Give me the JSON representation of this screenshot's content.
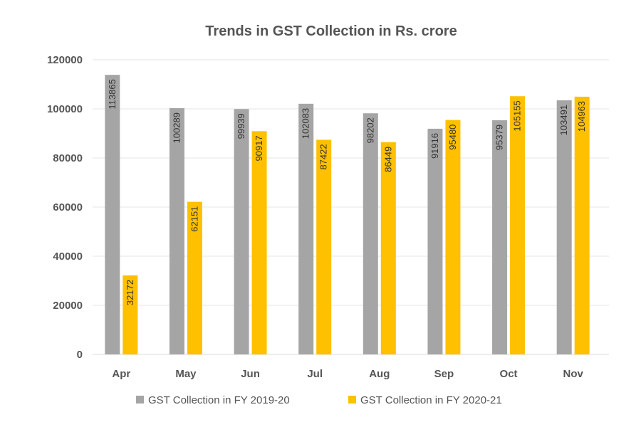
{
  "chart_data": {
    "type": "bar",
    "title": "Trends in GST Collection in Rs. crore",
    "xlabel": "",
    "ylabel": "",
    "categories": [
      "Apr",
      "May",
      "Jun",
      "Jul",
      "Aug",
      "Sep",
      "Oct",
      "Nov"
    ],
    "ylim": [
      0,
      120000
    ],
    "yticks": [
      "0",
      "20000",
      "40000",
      "60000",
      "80000",
      "100000",
      "120000"
    ],
    "grid": true,
    "legend_position": "bottom",
    "series": [
      {
        "name": "GST Collection in FY 2019-20",
        "color": "#a5a5a5",
        "values": [
          113865,
          100289,
          99939,
          102083,
          98202,
          91916,
          95379,
          103491
        ]
      },
      {
        "name": "GST Collection in FY 2020-21",
        "color": "#ffc000",
        "values": [
          32172,
          62151,
          90917,
          87422,
          86449,
          95480,
          105155,
          104963
        ]
      }
    ]
  }
}
